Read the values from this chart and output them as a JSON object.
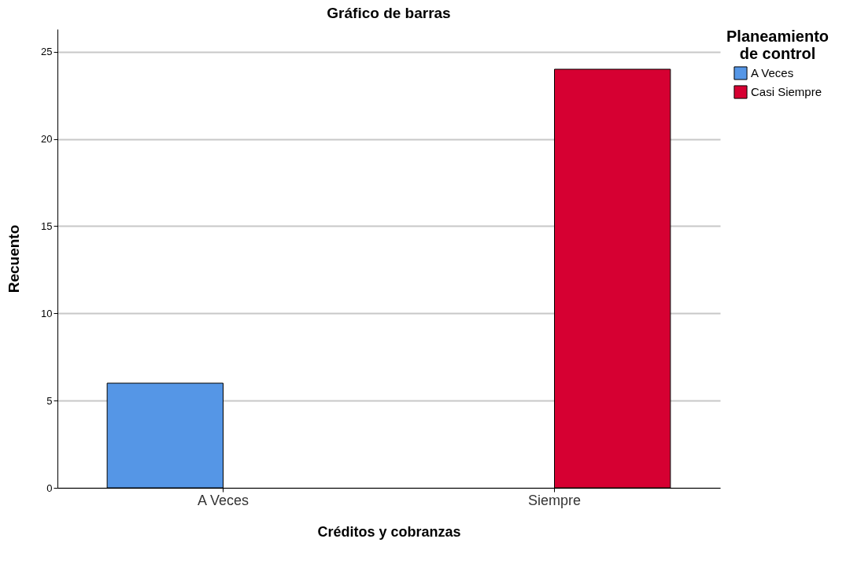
{
  "chart_data": {
    "type": "bar",
    "title": "Gráfico de barras",
    "xlabel": "Créditos y cobranzas",
    "ylabel": "Recuento",
    "legend_title": "Planeamiento de control",
    "categories": [
      "A Veces",
      "Siempre"
    ],
    "series": [
      {
        "name": "A Veces",
        "color": "#5596e6",
        "values": [
          6,
          null
        ]
      },
      {
        "name": "Casi Siempre",
        "color": "#d60032",
        "values": [
          null,
          24
        ]
      }
    ],
    "ylim": [
      0,
      26.3
    ],
    "yticks": [
      0,
      5,
      10,
      15,
      20,
      25
    ],
    "grid": "y",
    "legend": "top right"
  }
}
